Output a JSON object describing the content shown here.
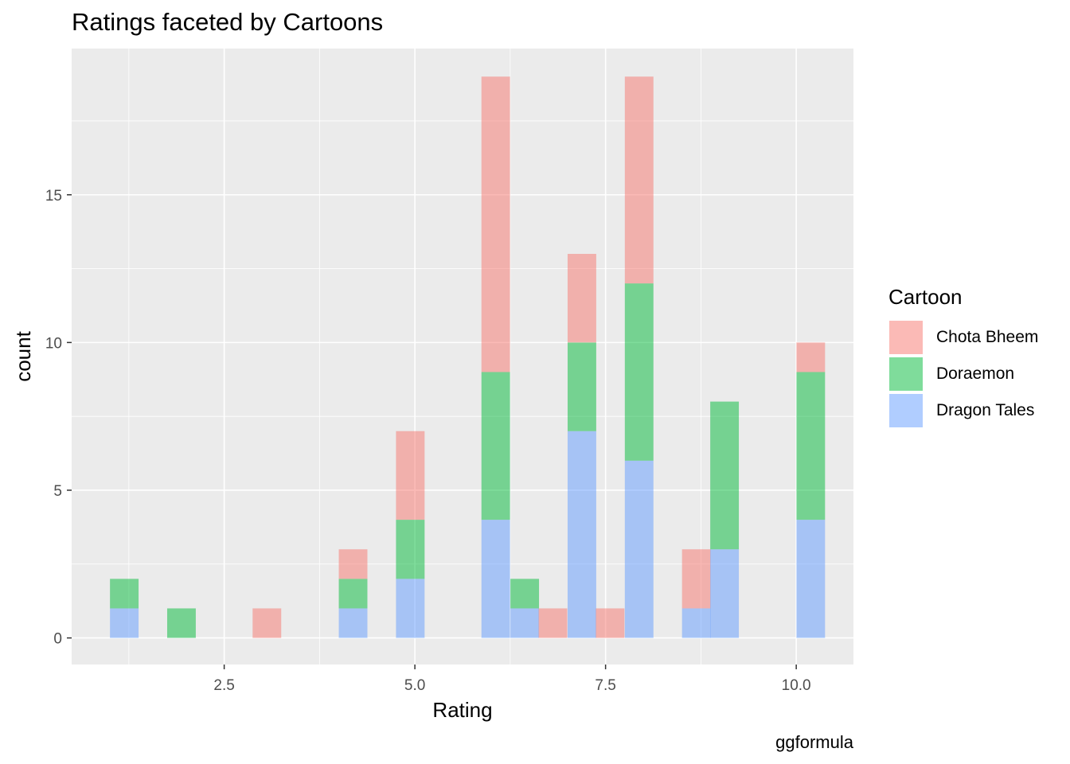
{
  "caption": "ggformula",
  "chart_data": {
    "type": "bar",
    "stacked": true,
    "title": "Ratings faceted by Cartoons",
    "xlabel": "Rating",
    "ylabel": "count",
    "xlim": [
      0.5,
      10.75
    ],
    "ylim": [
      -0.9,
      19.95
    ],
    "x_ticks": [
      "2.5",
      "5.0",
      "7.5",
      "10.0"
    ],
    "x_tick_values": [
      2.5,
      5.0,
      7.5,
      10.0
    ],
    "y_ticks": [
      "0",
      "5",
      "10",
      "15"
    ],
    "y_tick_values": [
      0,
      5,
      10,
      15
    ],
    "bin_width": 0.375,
    "bin_centers": [
      1.19,
      1.94,
      3.06,
      4.19,
      4.94,
      6.06,
      6.44,
      6.81,
      7.19,
      7.56,
      7.94,
      8.69,
      9.06,
      10.19
    ],
    "series": [
      {
        "name": "Dragon Tales",
        "color": "#619CFF",
        "values": [
          1,
          0,
          0,
          1,
          2,
          4,
          1,
          0,
          7,
          0,
          6,
          1,
          3,
          4
        ]
      },
      {
        "name": "Doraemon",
        "color": "#00BA38",
        "values": [
          1,
          1,
          0,
          1,
          2,
          5,
          1,
          0,
          3,
          0,
          6,
          0,
          5,
          5
        ]
      },
      {
        "name": "Chota Bheem",
        "color": "#F8766D",
        "values": [
          0,
          0,
          1,
          1,
          3,
          10,
          0,
          1,
          3,
          1,
          7,
          2,
          0,
          1
        ]
      }
    ],
    "grid": true,
    "legend": {
      "title": "Cartoon",
      "position": "right",
      "items": [
        "Chota Bheem",
        "Doraemon",
        "Dragon Tales"
      ]
    }
  }
}
